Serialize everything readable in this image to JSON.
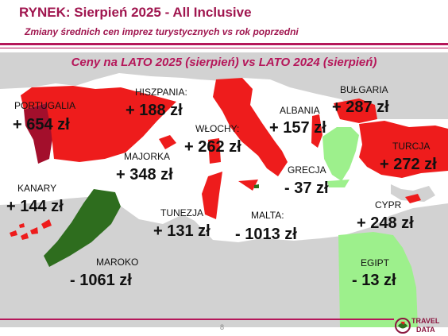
{
  "header": {
    "title": "RYNEK: Sierpień 2025 - All Inclusive",
    "subtitle": "Zmiany średnich cen imprez turystycznych vs rok poprzedni"
  },
  "map": {
    "title": "Ceny na LATO 2025 (sierpień) vs  LATO 2024 (sierpień)"
  },
  "countries": {
    "portugalia": {
      "label": "PORTUGALIA",
      "value": "+ 654 zł"
    },
    "hiszpania": {
      "label": "HISZPANIA:",
      "value": "+ 188 zł"
    },
    "majorka": {
      "label": "MAJORKA",
      "value": "+ 348 zł"
    },
    "kanary": {
      "label": "KANARY",
      "value": "+ 144 zł"
    },
    "wlochy": {
      "label": "WŁOCHY:",
      "value": "+ 262 zł"
    },
    "albania": {
      "label": "ALBANIA",
      "value": "+ 157 zł"
    },
    "bulgaria": {
      "label": "BUŁGARIA",
      "value": "+ 287 zł"
    },
    "turcja": {
      "label": "TURCJA",
      "value": "+ 272 zł"
    },
    "grecja": {
      "label": "GRECJA",
      "value": "- 37 zł"
    },
    "tunezja": {
      "label": "TUNEZJA",
      "value": "+ 131 zł"
    },
    "malta": {
      "label": "MALTA:",
      "value": "- 1013 zł"
    },
    "cypr": {
      "label": "CYPR",
      "value": "+ 248 zł"
    },
    "maroko": {
      "label": "MAROKO",
      "value": "- 1061 zł"
    },
    "egipt": {
      "label": "EGIPT",
      "value": "- 13 zł"
    }
  },
  "footer": {
    "page_number": "8",
    "logo_line1": "TRAVEL",
    "logo_line2": "DATA"
  },
  "colors": {
    "accent": "#b5175a",
    "increase": "#ee1c1c",
    "portugal": "#a30f2c",
    "decrease_strong": "#2e6d1e",
    "decrease_light": "#9df08c",
    "land": "#d2d2d2",
    "sea": "#ffffff"
  }
}
